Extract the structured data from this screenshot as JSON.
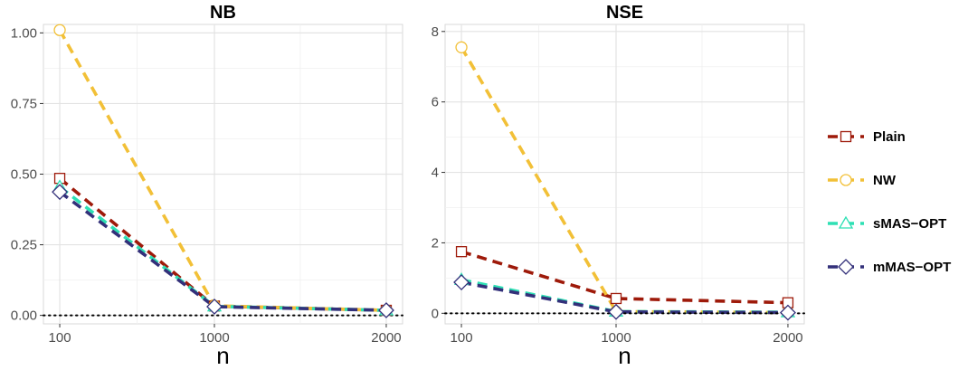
{
  "chart_data": [
    {
      "type": "line",
      "title": "NB",
      "xlabel": "n",
      "ylabel": "",
      "x": [
        100,
        1000,
        2000
      ],
      "x_tick_labels": [
        "100",
        "1000",
        "2000"
      ],
      "ylim": [
        -0.03,
        1.03
      ],
      "y_ticks": [
        0,
        0.25,
        0.5,
        0.75,
        1.0
      ],
      "y_tick_labels": [
        "0.00",
        "0.25",
        "0.50",
        "0.75",
        "1.00"
      ],
      "reference_line": 0,
      "grid": true,
      "series": [
        {
          "name": "Plain",
          "values": [
            0.485,
            0.033,
            0.018
          ]
        },
        {
          "name": "NW",
          "values": [
            1.01,
            0.034,
            0.018
          ]
        },
        {
          "name": "sMAS−OPT",
          "values": [
            0.455,
            0.032,
            0.018
          ]
        },
        {
          "name": "mMAS−OPT",
          "values": [
            0.437,
            0.031,
            0.018
          ]
        }
      ]
    },
    {
      "type": "line",
      "title": "NSE",
      "xlabel": "n",
      "ylabel": "",
      "x": [
        100,
        1000,
        2000
      ],
      "x_tick_labels": [
        "100",
        "1000",
        "2000"
      ],
      "ylim": [
        -0.3,
        8.2
      ],
      "y_ticks": [
        0,
        2,
        4,
        6,
        8
      ],
      "y_tick_labels": [
        "0",
        "2",
        "4",
        "6",
        "8"
      ],
      "reference_line": 0,
      "grid": true,
      "series": [
        {
          "name": "Plain",
          "values": [
            1.75,
            0.42,
            0.3
          ]
        },
        {
          "name": "NW",
          "values": [
            7.55,
            0.05,
            0.02
          ]
        },
        {
          "name": "sMAS−OPT",
          "values": [
            0.95,
            0.05,
            0.03
          ]
        },
        {
          "name": "mMAS−OPT",
          "values": [
            0.88,
            0.04,
            0.02
          ]
        }
      ]
    }
  ],
  "legend": {
    "placement": "right",
    "items": [
      {
        "label": "Plain",
        "color": "#9e1a0a",
        "marker": "square"
      },
      {
        "label": "NW",
        "color": "#f2c037",
        "marker": "circle"
      },
      {
        "label": "sMAS−OPT",
        "color": "#2ee0b4",
        "marker": "triangle"
      },
      {
        "label": "mMAS−OPT",
        "color": "#33307a",
        "marker": "diamond"
      }
    ]
  }
}
